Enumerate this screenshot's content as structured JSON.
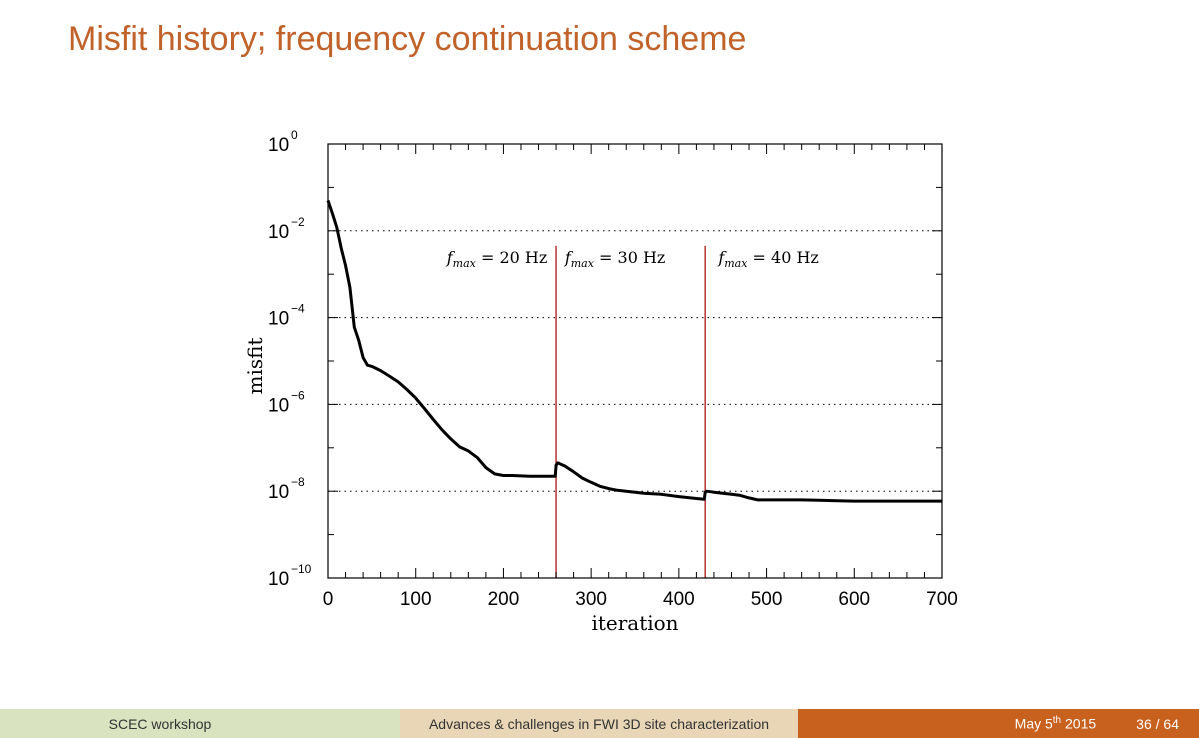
{
  "slide": {
    "title": "Misfit history; frequency continuation scheme"
  },
  "footer": {
    "left": "SCEC workshop",
    "middle": "Advances & challenges in FWI 3D site characterization",
    "date_prefix": "May 5",
    "date_sup": "th",
    "date_year": "2015",
    "page": "36 / 64"
  },
  "colors": {
    "title": "#c0622a",
    "marker_line": "#b22222",
    "curve": "#000000"
  },
  "chart_data": {
    "type": "line",
    "xlabel": "iteration",
    "ylabel": "misfit",
    "xlim": [
      0,
      700
    ],
    "ylim": [
      1e-10,
      1
    ],
    "yscale": "log",
    "x_ticks": [
      0,
      100,
      200,
      300,
      400,
      500,
      600,
      700
    ],
    "y_ticks": [
      {
        "base": "10",
        "exp": "0",
        "value": 1
      },
      {
        "base": "10",
        "exp": "−2",
        "value": 0.01
      },
      {
        "base": "10",
        "exp": "−4",
        "value": 0.0001
      },
      {
        "base": "10",
        "exp": "−6",
        "value": 1e-06
      },
      {
        "base": "10",
        "exp": "−8",
        "value": 1e-08
      },
      {
        "base": "10",
        "exp": "−10",
        "value": 1e-10
      }
    ],
    "grid_y": [
      0.01,
      0.0001,
      1e-06,
      1e-08
    ],
    "vertical_markers": [
      260,
      430
    ],
    "annotations": [
      {
        "label": "f",
        "sub": "max",
        "text": " = 20 Hz",
        "x": 250,
        "y": 0.0018,
        "align": "end"
      },
      {
        "label": "f",
        "sub": "max",
        "text": " = 30 Hz",
        "x": 270,
        "y": 0.0018,
        "align": "start"
      },
      {
        "label": "f",
        "sub": "max",
        "text": " = 40 Hz",
        "x": 445,
        "y": 0.0018,
        "align": "start"
      }
    ],
    "series": [
      {
        "x": [
          0,
          5,
          10,
          15,
          20,
          25,
          30,
          35,
          40,
          45,
          50,
          60,
          70,
          80,
          90,
          100,
          110,
          120,
          130,
          140,
          150,
          160,
          170,
          180,
          190,
          200,
          210,
          220,
          230,
          240,
          259,
          260,
          262,
          270,
          280,
          290,
          300,
          310,
          320,
          330,
          340,
          350,
          360,
          380,
          400,
          420,
          429,
          430,
          432,
          440,
          450,
          460,
          470,
          480,
          490,
          500,
          520,
          540,
          560,
          580,
          600,
          620,
          650,
          680,
          700
        ],
        "y": [
          0.05,
          0.025,
          0.012,
          0.004,
          0.0016,
          0.0005,
          6e-05,
          3e-05,
          1.2e-05,
          8e-06,
          7.5e-06,
          6e-06,
          4.5e-06,
          3.3e-06,
          2.2e-06,
          1.4e-06,
          8e-07,
          4.5e-07,
          2.6e-07,
          1.6e-07,
          1.05e-07,
          8.5e-08,
          6e-08,
          3.5e-08,
          2.5e-08,
          2.3e-08,
          2.3e-08,
          2.25e-08,
          2.2e-08,
          2.2e-08,
          2.2e-08,
          4e-08,
          4.5e-08,
          3.8e-08,
          2.8e-08,
          2e-08,
          1.6e-08,
          1.3e-08,
          1.15e-08,
          1.05e-08,
          1e-08,
          9.5e-09,
          9e-09,
          8.5e-09,
          7.5e-09,
          6.8e-09,
          6.5e-09,
          9.5e-09,
          1e-08,
          9.5e-09,
          9e-09,
          8.5e-09,
          8e-09,
          7e-09,
          6.3e-09,
          6.3e-09,
          6.3e-09,
          6.3e-09,
          6.2e-09,
          6e-09,
          5.9e-09,
          5.9e-09,
          5.9e-09,
          5.9e-09,
          5.9e-09
        ]
      }
    ]
  }
}
